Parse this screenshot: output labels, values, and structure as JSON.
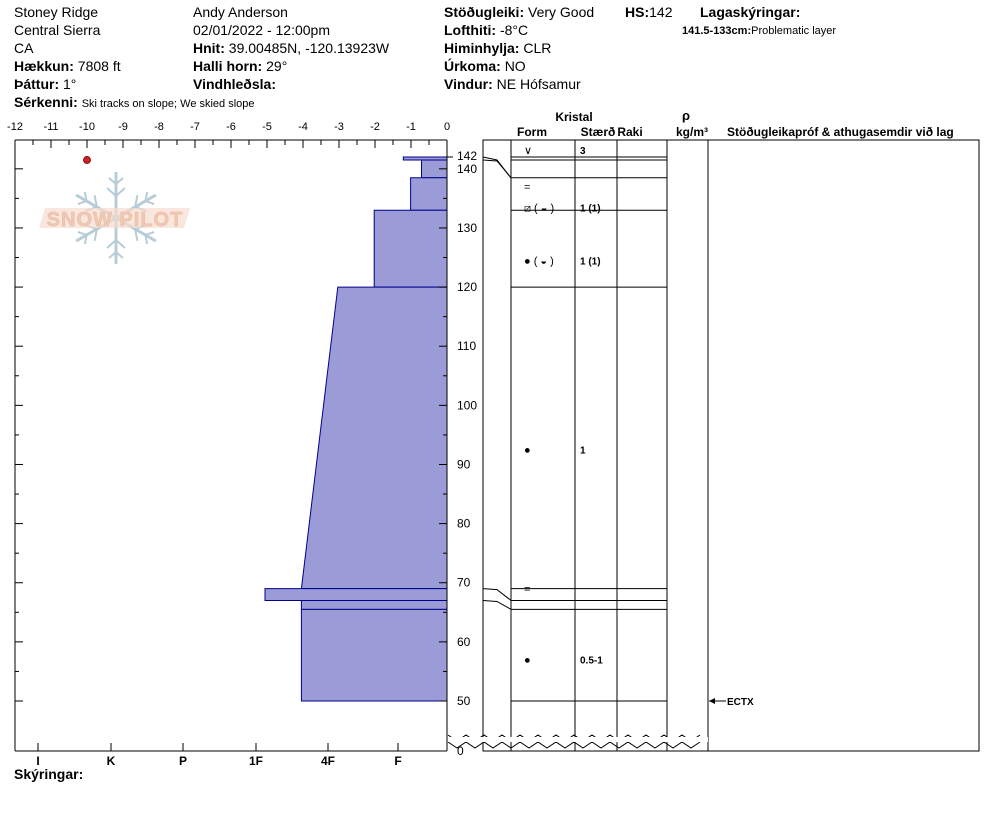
{
  "header": {
    "location": "Stoney Ridge",
    "range": "Central Sierra",
    "state": "CA",
    "elevation_label": "Hækkun:",
    "elevation": "7808 ft",
    "aspect_label": "Þáttur:",
    "aspect": "1°",
    "features_label": "Sérkenni:",
    "features": "Ski tracks on slope; We skied slope",
    "observer": "Andy Anderson",
    "datetime": "02/01/2022 - 12:00pm",
    "coords_label": "Hnit:",
    "coords": "39.00485N, -120.13923W",
    "slope_label": "Halli horn:",
    "slope": "29°",
    "wind_loading_label": "Vindhleðsla:",
    "wind_loading": "",
    "stability_label": "Stöðugleiki:",
    "stability": "Very Good",
    "hs_label": "HS:",
    "hs": "142",
    "air_temp_label": "Lofthiti:",
    "air_temp": "-8°C",
    "sky_label": "Himinhylja:",
    "sky": "CLR",
    "precip_label": "Úrkoma:",
    "precip": "NO",
    "wind_label": "Vindur:",
    "wind": "NE Hófsamur",
    "layer_notes_label": "Lagaskýringar:",
    "layer_note_range": "141.5-133cm:",
    "layer_note_text": "Problematic layer",
    "footer_label": "Skýringar:"
  },
  "logo_text": "SNOW PILOT",
  "table": {
    "crystal_label": "Kristal",
    "form_label": "Form",
    "size_label": "Stærð",
    "moisture_label": "Raki",
    "rho_label": "ρ",
    "density_unit": "kg/m³",
    "tests_label": "Stöðugleikapróf & athugasemdir við lag",
    "test_result": "ECTX",
    "test_depth": 50
  },
  "colors": {
    "hardness_fill": "#9b9bd7",
    "hardness_stroke": "#00008b",
    "temp_marker": "#cc2222",
    "logo_text": "#f0c8b4",
    "logo_flake": "#b8ccd8"
  },
  "chart_data": {
    "type": "snow-profile",
    "temperature_axis": {
      "min": -12,
      "max": 0,
      "ticks": [
        -12,
        -11,
        -10,
        -9,
        -8,
        -7,
        -6,
        -5,
        -4,
        -3,
        -2,
        -1,
        0
      ]
    },
    "depth_axis": {
      "min": 0,
      "max": 142,
      "ticks": [
        50,
        60,
        70,
        80,
        90,
        100,
        110,
        120,
        130,
        140
      ],
      "top_label": 142,
      "bottom_label": 0,
      "broken_below": 50
    },
    "hardness_scale": [
      "I",
      "K",
      "P",
      "1F",
      "4F",
      "F"
    ],
    "temperature_readings": [
      {
        "depth": 141.5,
        "temp": -10
      }
    ],
    "layers": [
      {
        "top": 142,
        "bottom": 141.5,
        "hardness_left": "4F-",
        "hardness_right": "F",
        "hardness_value": 1.2,
        "form": "surface hoar",
        "form_glyph": "∨",
        "size": "3",
        "form_pos": 140
      },
      {
        "top": 141.5,
        "bottom": 138.5,
        "hardness_left": "F",
        "hardness_right": "F",
        "hardness_value": 0.7,
        "form": "near-surface facets",
        "form_glyph": "=",
        "size": "",
        "form_pos": 137
      },
      {
        "top": 138.5,
        "bottom": 133,
        "hardness_left": "F",
        "hardness_right": "F",
        "hardness_value": 1.0,
        "form": "faceted rounded with melt form",
        "form_glyph": "⧄ ( ◒ )",
        "size": "1 (1)",
        "form_pos": 133.5
      },
      {
        "top": 133,
        "bottom": 120,
        "hardness_left": "4F",
        "hardness_right": "4F",
        "hardness_value": 2.0,
        "form": "rounded with melt form",
        "form_glyph": "● ( ◒ )",
        "size": "1 (1)",
        "form_pos": 124.5
      },
      {
        "top": 120,
        "bottom": 69,
        "hardness_left": "1F",
        "hardness_right": "P",
        "hardness_value_top": 3.0,
        "hardness_value_bottom": 4.0,
        "form": "rounded grains",
        "form_glyph": "●",
        "size": "1",
        "form_pos": 92.5
      },
      {
        "top": 69,
        "bottom": 67,
        "hardness_left": "K",
        "hardness_right": "K",
        "hardness_value": 5.0,
        "form": "near-surface facets",
        "form_glyph": "=",
        "size": "",
        "form_pos": 69
      },
      {
        "top": 67,
        "bottom": 65.5,
        "hardness_left": "P",
        "hardness_right": "P",
        "hardness_value": 4.0,
        "form": "",
        "form_glyph": "",
        "size": "",
        "form_pos": 66
      },
      {
        "top": 65.5,
        "bottom": 50,
        "hardness_left": "P",
        "hardness_right": "P",
        "hardness_value": 4.0,
        "form": "rounded grains",
        "form_glyph": "●",
        "size": "0.5-1",
        "form_pos": 57
      }
    ]
  }
}
